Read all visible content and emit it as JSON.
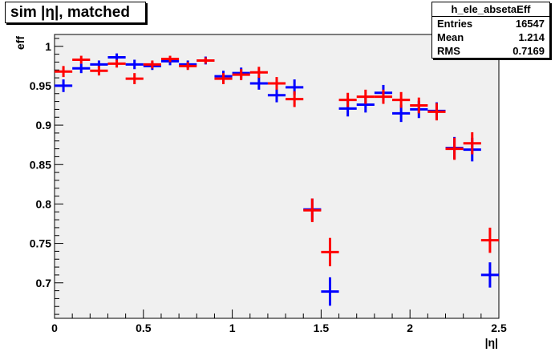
{
  "title": "sim |η|, matched",
  "stats": {
    "name": "h_ele_absetaEff",
    "rows": [
      {
        "label": "Entries",
        "value": "16547"
      },
      {
        "label": "Mean",
        "value": "1.214"
      },
      {
        "label": "RMS",
        "value": "0.7169"
      }
    ]
  },
  "chart_data": {
    "type": "scatter",
    "xlabel": "|η|",
    "ylabel": "eff",
    "xlim": [
      0,
      2.5
    ],
    "ylim": [
      0.655,
      1.015
    ],
    "x_ticks": [
      "0",
      "0.5",
      "1",
      "1.5",
      "2",
      "2.5"
    ],
    "y_ticks": [
      "0.7",
      "0.75",
      "0.8",
      "0.85",
      "0.9",
      "0.95",
      "1"
    ],
    "x_tick_values": [
      0,
      0.5,
      1,
      1.5,
      2,
      2.5
    ],
    "y_tick_values": [
      0.7,
      0.75,
      0.8,
      0.85,
      0.9,
      0.95,
      1.0
    ],
    "x_bin_width": 0.1,
    "grid": false,
    "frame_color": "#f0f0f0",
    "series": [
      {
        "color": "#0000ff",
        "x": [
          0.05,
          0.15,
          0.25,
          0.35,
          0.45,
          0.55,
          0.65,
          0.75,
          0.85,
          0.95,
          1.05,
          1.15,
          1.25,
          1.35,
          1.45,
          1.55,
          1.65,
          1.75,
          1.85,
          1.95,
          2.05,
          2.15,
          2.25,
          2.35,
          2.45
        ],
        "y": [
          0.95,
          0.972,
          0.977,
          0.986,
          0.977,
          0.975,
          0.981,
          0.977,
          0.982,
          0.962,
          0.966,
          0.953,
          0.938,
          0.948,
          0.793,
          0.689,
          0.921,
          0.926,
          0.941,
          0.915,
          0.92,
          0.918,
          0.871,
          0.869,
          0.71
        ],
        "err": [
          0.008,
          0.006,
          0.005,
          0.005,
          0.006,
          0.005,
          0.005,
          0.005,
          0.005,
          0.007,
          0.007,
          0.008,
          0.009,
          0.01,
          0.014,
          0.018,
          0.01,
          0.01,
          0.01,
          0.011,
          0.011,
          0.011,
          0.014,
          0.015,
          0.016
        ]
      },
      {
        "color": "#ff0000",
        "x": [
          0.05,
          0.15,
          0.25,
          0.35,
          0.45,
          0.55,
          0.65,
          0.75,
          0.85,
          0.95,
          1.05,
          1.15,
          1.25,
          1.35,
          1.45,
          1.55,
          1.65,
          1.75,
          1.85,
          1.95,
          2.05,
          2.15,
          2.25,
          2.35,
          2.45
        ],
        "y": [
          0.968,
          0.983,
          0.969,
          0.978,
          0.959,
          0.977,
          0.984,
          0.975,
          0.982,
          0.959,
          0.964,
          0.967,
          0.953,
          0.933,
          0.792,
          0.739,
          0.932,
          0.936,
          0.936,
          0.932,
          0.925,
          0.917,
          0.87,
          0.877,
          0.754
        ],
        "err": [
          0.007,
          0.005,
          0.006,
          0.005,
          0.007,
          0.005,
          0.004,
          0.005,
          0.004,
          0.007,
          0.007,
          0.007,
          0.008,
          0.01,
          0.015,
          0.018,
          0.009,
          0.009,
          0.009,
          0.01,
          0.01,
          0.011,
          0.014,
          0.014,
          0.016
        ]
      }
    ]
  }
}
